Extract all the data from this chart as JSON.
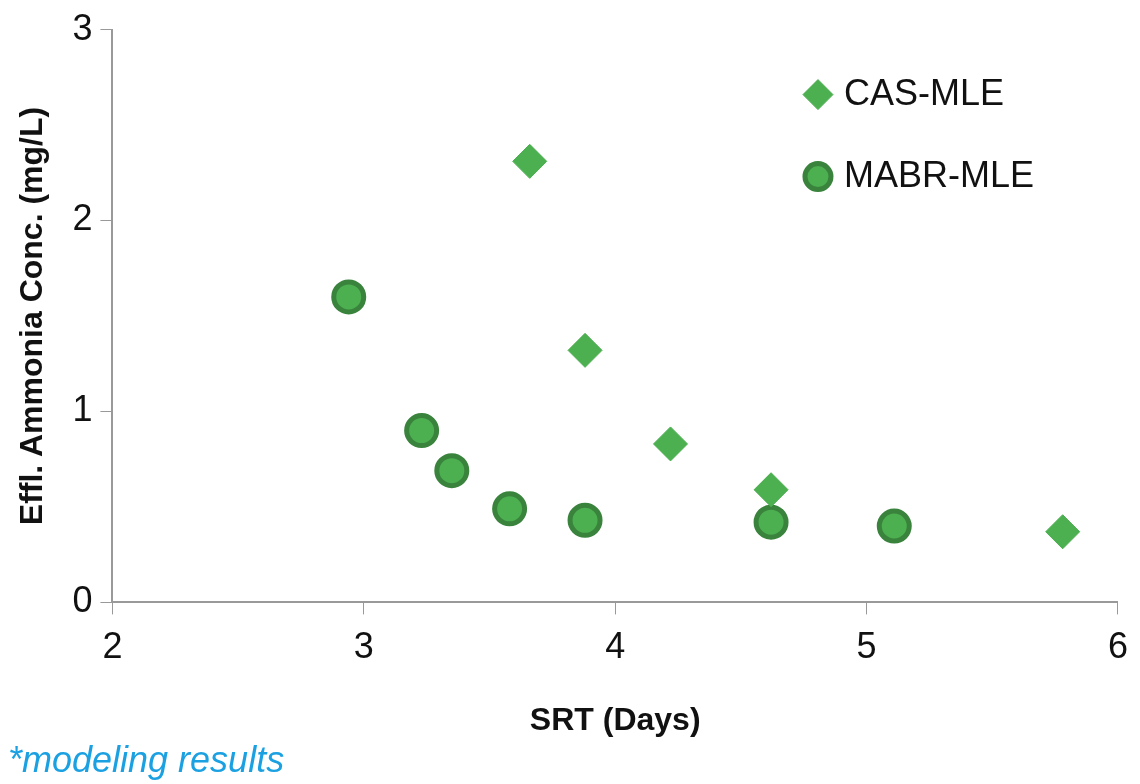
{
  "chart_data": {
    "type": "scatter",
    "xlabel": "SRT (Days)",
    "ylabel": "Effl. Ammonia Conc. (mg/L)",
    "xlim": [
      2,
      6
    ],
    "xticks": [
      2,
      3,
      4,
      5,
      6
    ],
    "ylim": [
      0,
      3
    ],
    "yticks": [
      0,
      1,
      2,
      3
    ],
    "grid": false,
    "legend": "top right",
    "annotations": [
      "*modeling results"
    ],
    "series": [
      {
        "name": "CAS-MLE",
        "color": "#4caf50",
        "marker": "diamond",
        "x": [
          3.66,
          3.88,
          4.22,
          4.62,
          5.78
        ],
        "values": [
          2.31,
          1.32,
          0.83,
          0.59,
          0.37
        ]
      },
      {
        "name": "MABR-MLE",
        "color": "#4caf50",
        "marker": "circle",
        "x": [
          2.94,
          3.23,
          3.35,
          3.58,
          3.88,
          4.62,
          5.11
        ],
        "values": [
          1.6,
          0.9,
          0.69,
          0.49,
          0.43,
          0.42,
          0.4
        ]
      }
    ]
  }
}
